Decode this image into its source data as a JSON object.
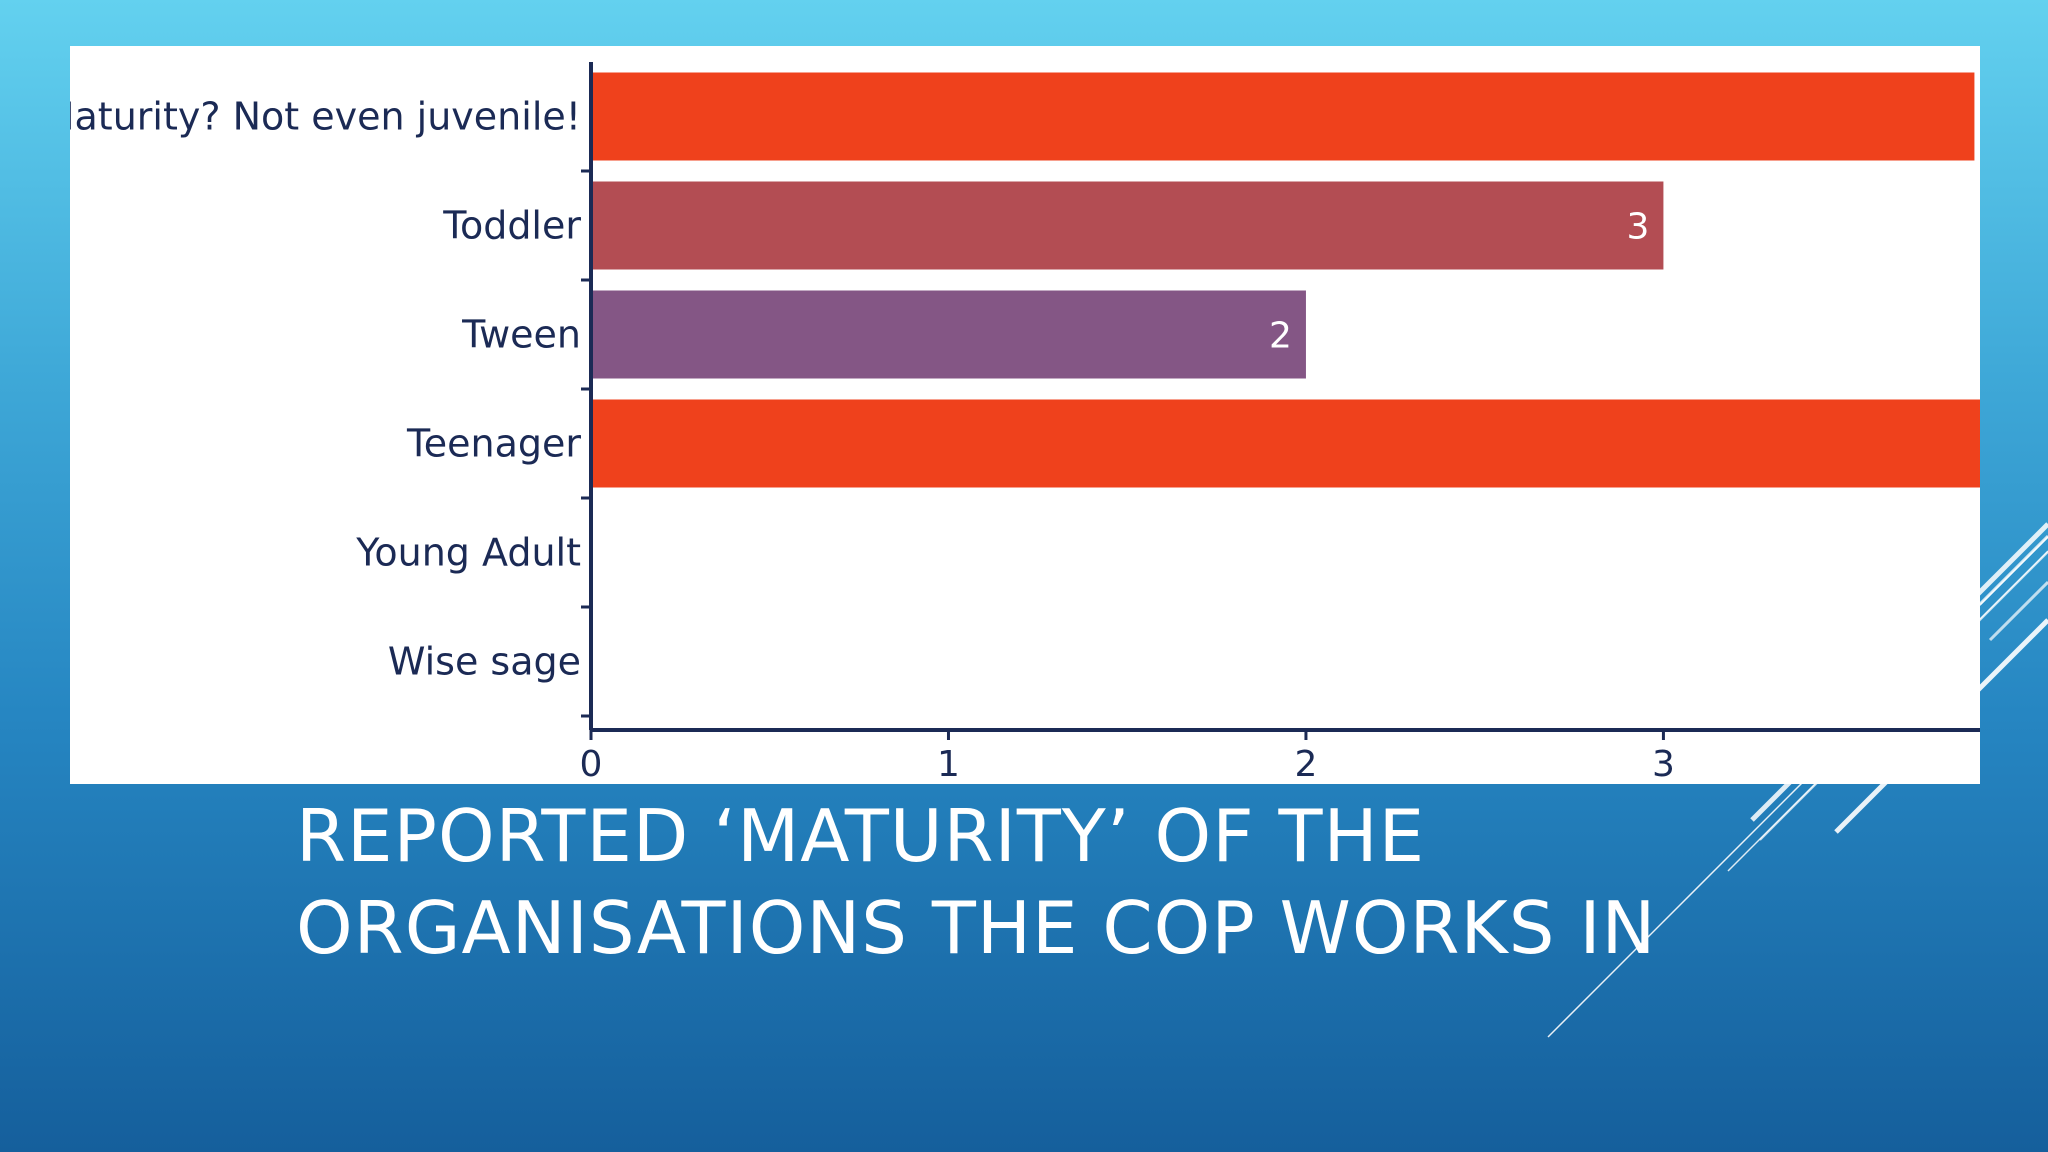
{
  "slide": {
    "title_lines": [
      "REPORTED ‘MATURITY’ OF THE",
      "ORGANISATIONS THE COP WORKS IN"
    ],
    "colors": {
      "background_top": "#63d1ef",
      "background_bottom": "#155f9c",
      "decoration_lines": "#ffffff"
    }
  },
  "chart_data": {
    "type": "bar",
    "orientation": "horizontal",
    "title": "",
    "xlabel": "",
    "ylabel": "",
    "categories": [
      "Maturity? Not even juvenile!",
      "Toddler",
      "Tween",
      "Teenager",
      "Young Adult",
      "Wise sage"
    ],
    "values": [
      3.87,
      3,
      2,
      4,
      0,
      0
    ],
    "value_labels": [
      "",
      "3",
      "2",
      "",
      "",
      ""
    ],
    "bar_colors": [
      "#ef411c",
      "#b34d53",
      "#845685",
      "#ef411c",
      "#ef411c",
      "#ef411c"
    ],
    "xlim": [
      0,
      3.88
    ],
    "x_ticks": [
      0,
      1,
      2,
      3
    ],
    "x_tick_labels": [
      "0",
      "1",
      "2",
      "3"
    ],
    "grid": false,
    "legend": "none",
    "axis_color": "#1b2a55"
  }
}
